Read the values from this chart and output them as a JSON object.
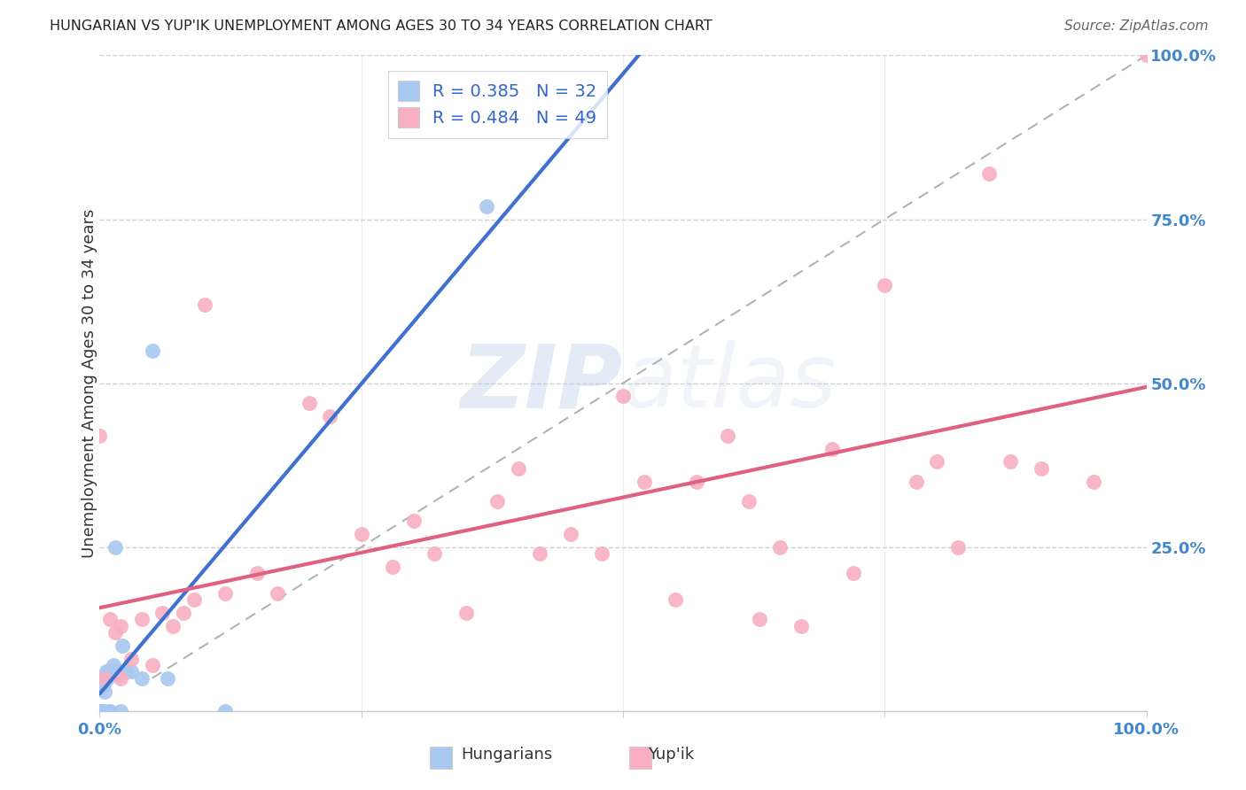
{
  "title": "HUNGARIAN VS YUP'IK UNEMPLOYMENT AMONG AGES 30 TO 34 YEARS CORRELATION CHART",
  "source": "Source: ZipAtlas.com",
  "ylabel": "Unemployment Among Ages 30 to 34 years",
  "xlim": [
    0.0,
    1.0
  ],
  "ylim": [
    0.0,
    1.0
  ],
  "hungarian_R": 0.385,
  "hungarian_N": 32,
  "yupik_R": 0.484,
  "yupik_N": 49,
  "hungarian_color": "#a8c8f0",
  "yupik_color": "#f8b0c0",
  "hungarian_line_color": "#4070d0",
  "yupik_line_color": "#e06080",
  "watermark_zip": "ZIP",
  "watermark_atlas": "atlas",
  "hungarian_x": [
    0.0,
    0.0,
    0.001,
    0.001,
    0.002,
    0.002,
    0.003,
    0.003,
    0.004,
    0.005,
    0.005,
    0.006,
    0.006,
    0.007,
    0.008,
    0.009,
    0.01,
    0.01,
    0.012,
    0.013,
    0.015,
    0.015,
    0.018,
    0.02,
    0.022,
    0.025,
    0.03,
    0.04,
    0.05,
    0.065,
    0.12,
    0.37
  ],
  "hungarian_y": [
    0.0,
    0.0,
    0.0,
    0.0,
    0.0,
    0.0,
    0.0,
    0.0,
    0.04,
    0.03,
    0.05,
    0.05,
    0.06,
    0.05,
    0.06,
    0.0,
    0.06,
    0.0,
    0.06,
    0.07,
    0.06,
    0.25,
    0.055,
    0.0,
    0.1,
    0.06,
    0.06,
    0.05,
    0.55,
    0.05,
    0.0,
    0.77
  ],
  "yupik_x": [
    0.0,
    0.005,
    0.01,
    0.015,
    0.02,
    0.02,
    0.03,
    0.04,
    0.05,
    0.06,
    0.07,
    0.08,
    0.09,
    0.1,
    0.12,
    0.15,
    0.17,
    0.2,
    0.22,
    0.25,
    0.28,
    0.3,
    0.32,
    0.35,
    0.38,
    0.4,
    0.42,
    0.45,
    0.48,
    0.5,
    0.52,
    0.55,
    0.57,
    0.6,
    0.62,
    0.63,
    0.65,
    0.67,
    0.7,
    0.72,
    0.75,
    0.78,
    0.8,
    0.82,
    0.85,
    0.87,
    0.9,
    0.95,
    1.0
  ],
  "yupik_y": [
    0.42,
    0.05,
    0.14,
    0.12,
    0.13,
    0.05,
    0.08,
    0.14,
    0.07,
    0.15,
    0.13,
    0.15,
    0.17,
    0.62,
    0.18,
    0.21,
    0.18,
    0.47,
    0.45,
    0.27,
    0.22,
    0.29,
    0.24,
    0.15,
    0.32,
    0.37,
    0.24,
    0.27,
    0.24,
    0.48,
    0.35,
    0.17,
    0.35,
    0.42,
    0.32,
    0.14,
    0.25,
    0.13,
    0.4,
    0.21,
    0.65,
    0.35,
    0.38,
    0.25,
    0.82,
    0.38,
    0.37,
    0.35,
    1.0
  ],
  "background_color": "#ffffff",
  "grid_color": "#d0d0d0",
  "tick_label_color": "#4488cc",
  "title_color": "#222222",
  "source_color": "#666666",
  "ylabel_color": "#333333"
}
